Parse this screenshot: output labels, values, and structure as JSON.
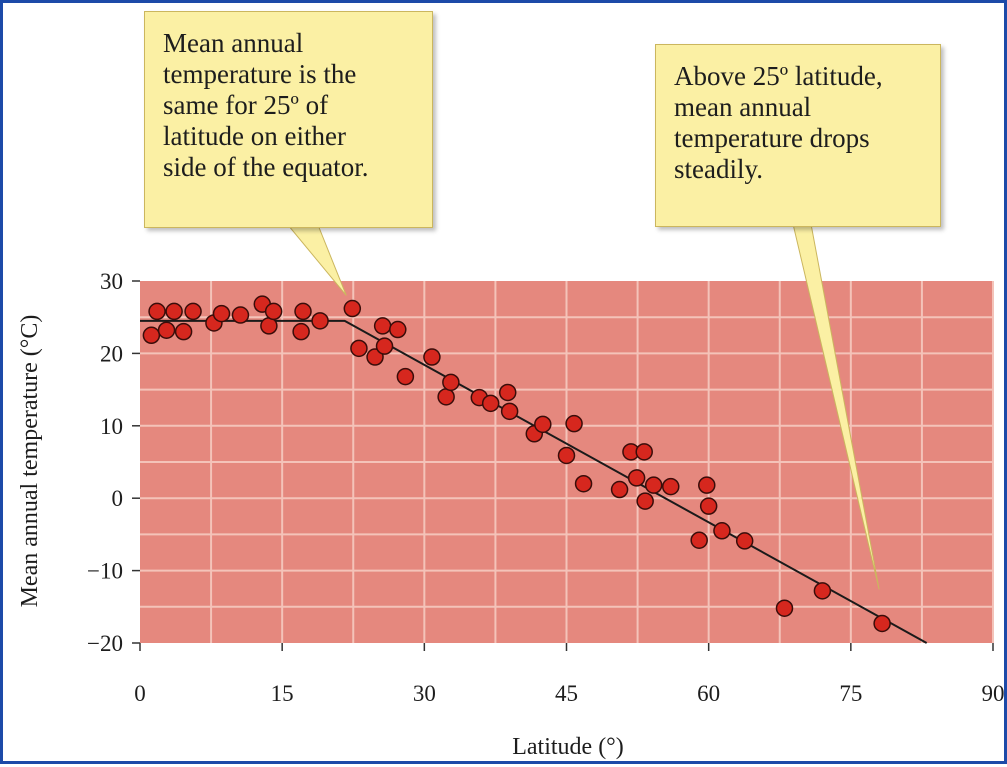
{
  "chart_data": {
    "type": "scatter",
    "title": "",
    "xlabel": "Latitude (°)",
    "ylabel": "Mean annual temperature (°C)",
    "xlim": [
      0,
      90
    ],
    "ylim": [
      -20,
      30
    ],
    "x_ticks": [
      "0",
      "15",
      "30",
      "45",
      "60",
      "75",
      "90"
    ],
    "y_ticks": [
      "30",
      "20",
      "10",
      "0",
      "−10",
      "−20"
    ],
    "x_tick_values": [
      0,
      15,
      30,
      45,
      60,
      75,
      90
    ],
    "y_tick_values": [
      30,
      20,
      10,
      0,
      -10,
      -20
    ],
    "grid": true,
    "legend": "none",
    "colors": {
      "plot_background": "#e5887e",
      "grid": "#f4c3b9",
      "point_fill": "#d6271e",
      "point_stroke": "#3a0d0a",
      "trend_line": "#1a1a1a"
    },
    "points": [
      [
        1.2,
        22.5
      ],
      [
        1.8,
        25.8
      ],
      [
        2.8,
        23.2
      ],
      [
        3.6,
        25.8
      ],
      [
        4.6,
        23.0
      ],
      [
        5.6,
        25.8
      ],
      [
        7.8,
        24.2
      ],
      [
        8.6,
        25.5
      ],
      [
        10.6,
        25.3
      ],
      [
        12.9,
        26.8
      ],
      [
        13.6,
        23.8
      ],
      [
        14.1,
        25.8
      ],
      [
        17.0,
        23.0
      ],
      [
        17.2,
        25.8
      ],
      [
        19.0,
        24.5
      ],
      [
        22.4,
        26.2
      ],
      [
        23.1,
        20.7
      ],
      [
        24.8,
        19.5
      ],
      [
        25.6,
        23.8
      ],
      [
        25.8,
        21.0
      ],
      [
        27.2,
        23.3
      ],
      [
        28.0,
        16.8
      ],
      [
        30.8,
        19.5
      ],
      [
        32.3,
        14.0
      ],
      [
        32.8,
        16.0
      ],
      [
        35.8,
        13.9
      ],
      [
        37.0,
        13.1
      ],
      [
        38.8,
        14.6
      ],
      [
        39.0,
        12.0
      ],
      [
        41.6,
        8.9
      ],
      [
        42.5,
        10.2
      ],
      [
        45.0,
        5.9
      ],
      [
        45.8,
        10.3
      ],
      [
        46.8,
        2.0
      ],
      [
        50.6,
        1.2
      ],
      [
        51.8,
        6.4
      ],
      [
        52.4,
        2.8
      ],
      [
        53.2,
        6.4
      ],
      [
        53.3,
        -0.4
      ],
      [
        54.2,
        1.8
      ],
      [
        56.0,
        1.6
      ],
      [
        59.0,
        -5.8
      ],
      [
        59.8,
        1.8
      ],
      [
        60.0,
        -1.1
      ],
      [
        61.4,
        -4.5
      ],
      [
        63.8,
        -5.9
      ],
      [
        68.0,
        -15.2
      ],
      [
        72.0,
        -12.8
      ],
      [
        78.3,
        -17.3
      ]
    ],
    "trend_line": [
      [
        0,
        24.5
      ],
      [
        21.6,
        24.5
      ],
      [
        83,
        -20.8
      ]
    ]
  },
  "annotations": [
    {
      "id": "left",
      "lines": [
        "Mean annual",
        "temperature is the",
        "same for 25º of",
        "latitude on either",
        "side of the equator."
      ],
      "target": [
        22.4,
        28.0
      ]
    },
    {
      "id": "right",
      "lines": [
        "Above 25º latitude,",
        "mean annual",
        "temperature drops",
        "steadily."
      ],
      "target": [
        78.3,
        -12.6
      ]
    }
  ]
}
